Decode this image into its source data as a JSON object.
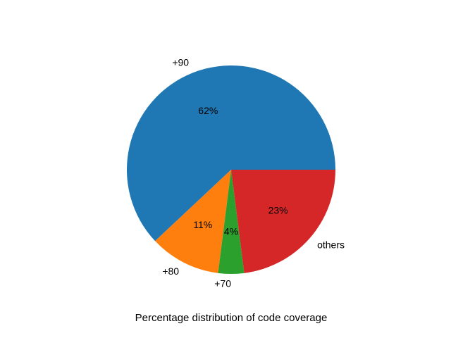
{
  "chart_data": {
    "type": "pie",
    "categories": [
      "+90",
      "+80",
      "+70",
      "others"
    ],
    "values": [
      62,
      11,
      4,
      23
    ],
    "value_labels": [
      "62%",
      "11%",
      "4%",
      "23%"
    ],
    "colors": [
      "#1f77b4",
      "#ff7f0e",
      "#2ca02c",
      "#d62728"
    ],
    "start_angle_deg": 0,
    "direction": "counterclockwise",
    "legend": "none",
    "xlabel": "Percentage distribution of code coverage"
  }
}
